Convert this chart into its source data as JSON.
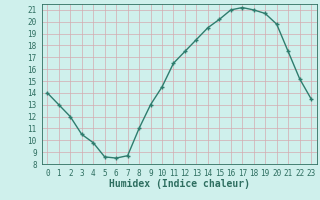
{
  "x": [
    0,
    1,
    2,
    3,
    4,
    5,
    6,
    7,
    8,
    9,
    10,
    11,
    12,
    13,
    14,
    15,
    16,
    17,
    18,
    19,
    20,
    21,
    22,
    23
  ],
  "y": [
    14,
    13,
    12,
    10.5,
    9.8,
    8.6,
    8.5,
    8.7,
    11.0,
    13.0,
    14.5,
    16.5,
    17.5,
    18.5,
    19.5,
    20.2,
    21.0,
    21.2,
    21.0,
    20.7,
    19.8,
    17.5,
    15.2,
    13.5
  ],
  "line_color": "#2e7d6e",
  "marker": "+",
  "bg_color": "#cff0ec",
  "grid_color": "#d4aab0",
  "xlabel": "Humidex (Indice chaleur)",
  "ylim": [
    8,
    21.5
  ],
  "xlim": [
    -0.5,
    23.5
  ],
  "yticks": [
    8,
    9,
    10,
    11,
    12,
    13,
    14,
    15,
    16,
    17,
    18,
    19,
    20,
    21
  ],
  "xticks": [
    0,
    1,
    2,
    3,
    4,
    5,
    6,
    7,
    8,
    9,
    10,
    11,
    12,
    13,
    14,
    15,
    16,
    17,
    18,
    19,
    20,
    21,
    22,
    23
  ],
  "xtick_labels": [
    "0",
    "1",
    "2",
    "3",
    "4",
    "5",
    "6",
    "7",
    "8",
    "9",
    "10",
    "11",
    "12",
    "13",
    "14",
    "15",
    "16",
    "17",
    "18",
    "19",
    "20",
    "21",
    "22",
    "23"
  ],
  "tick_color": "#2e6e60",
  "xlabel_color": "#2e6e60",
  "font_size_xlabel": 7,
  "font_size_ticks": 5.5,
  "linewidth": 1.0,
  "marker_size": 3,
  "marker_ew": 1.0
}
